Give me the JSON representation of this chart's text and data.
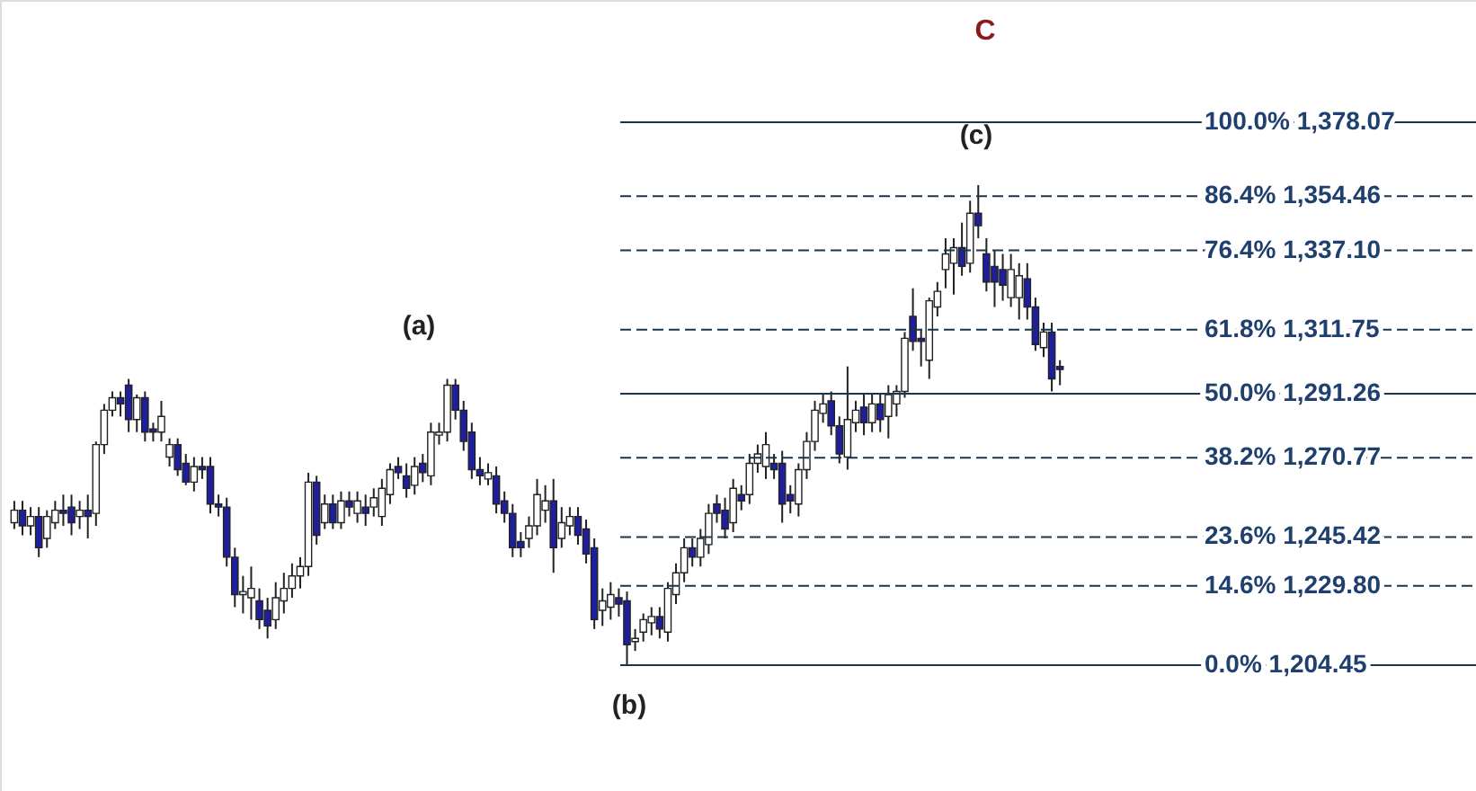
{
  "chart_data": {
    "type": "candlestick",
    "title": "C",
    "categories": [
      null,
      null,
      null,
      null,
      null,
      null,
      null,
      null,
      null,
      null,
      null,
      null,
      null,
      null,
      null,
      null,
      null,
      null,
      null,
      null,
      null,
      null,
      null,
      null,
      null,
      null,
      null,
      null,
      null,
      null,
      null,
      null,
      null,
      null,
      null,
      null,
      null,
      null,
      null,
      null,
      null,
      null,
      null,
      null,
      null,
      null,
      null,
      null,
      null,
      null,
      null,
      null,
      null,
      null,
      null,
      null,
      null,
      null,
      null,
      null,
      null,
      null,
      null,
      null,
      null,
      null,
      null,
      null,
      null,
      null,
      null,
      null,
      null,
      null,
      null,
      null,
      null,
      null,
      null,
      null,
      null,
      null,
      null,
      null,
      null,
      null,
      null,
      null,
      null,
      null,
      null,
      null,
      null,
      null,
      null,
      null,
      null,
      null,
      null,
      null,
      null,
      null,
      null,
      null,
      null,
      null,
      null,
      null,
      null,
      null,
      null,
      null,
      null,
      null,
      null,
      null,
      null,
      null,
      null,
      null,
      null,
      null,
      null,
      null,
      null,
      null,
      null,
      null,
      null
    ],
    "ohlc": [
      [
        1250,
        1257,
        1248,
        1254
      ],
      [
        1254,
        1257,
        1246,
        1249
      ],
      [
        1249,
        1255,
        1246,
        1252
      ],
      [
        1252,
        1255,
        1239,
        1242
      ],
      [
        1245,
        1254,
        1242,
        1252
      ],
      [
        1250,
        1257,
        1248,
        1254
      ],
      [
        1254,
        1259,
        1249,
        1253
      ],
      [
        1255,
        1259,
        1246,
        1250
      ],
      [
        1252,
        1257,
        1248,
        1254
      ],
      [
        1254,
        1259,
        1245,
        1252
      ],
      [
        1253,
        1276,
        1249,
        1275
      ],
      [
        1275,
        1288,
        1272,
        1286
      ],
      [
        1286,
        1292,
        1284,
        1290
      ],
      [
        1290,
        1292,
        1284,
        1288
      ],
      [
        1294,
        1296,
        1279,
        1283
      ],
      [
        1283,
        1291,
        1279,
        1290
      ],
      [
        1290,
        1292,
        1276,
        1279
      ],
      [
        1280,
        1282,
        1276,
        1279
      ],
      [
        1279,
        1289,
        1276,
        1284
      ],
      [
        1271,
        1277,
        1268,
        1275
      ],
      [
        1275,
        1277,
        1265,
        1267
      ],
      [
        1269,
        1272,
        1262,
        1263
      ],
      [
        1263,
        1271,
        1260,
        1268
      ],
      [
        1268,
        1271,
        1264,
        1267
      ],
      [
        1268,
        1271,
        1253,
        1256
      ],
      [
        1256,
        1259,
        1252,
        1255
      ],
      [
        1255,
        1258,
        1236,
        1239
      ],
      [
        1239,
        1242,
        1223,
        1227
      ],
      [
        1227,
        1233,
        1221,
        1228
      ],
      [
        1226,
        1236,
        1219,
        1229
      ],
      [
        1225,
        1229,
        1216,
        1219
      ],
      [
        1222,
        1226,
        1213,
        1217
      ],
      [
        1219,
        1231,
        1216,
        1226
      ],
      [
        1225,
        1234,
        1221,
        1229
      ],
      [
        1229,
        1237,
        1226,
        1233
      ],
      [
        1233,
        1239,
        1229,
        1236
      ],
      [
        1236,
        1266,
        1233,
        1263
      ],
      [
        1263,
        1265,
        1243,
        1246
      ],
      [
        1250,
        1259,
        1248,
        1256
      ],
      [
        1256,
        1259,
        1248,
        1250
      ],
      [
        1250,
        1260,
        1248,
        1257
      ],
      [
        1257,
        1260,
        1252,
        1255
      ],
      [
        1253,
        1260,
        1250,
        1257
      ],
      [
        1255,
        1259,
        1249,
        1253
      ],
      [
        1255,
        1261,
        1252,
        1258
      ],
      [
        1252,
        1264,
        1249,
        1261
      ],
      [
        1259,
        1269,
        1256,
        1267
      ],
      [
        1268,
        1271,
        1264,
        1266
      ],
      [
        1265,
        1269,
        1258,
        1261
      ],
      [
        1262,
        1271,
        1259,
        1268
      ],
      [
        1269,
        1272,
        1263,
        1266
      ],
      [
        1265,
        1282,
        1262,
        1279
      ],
      [
        1278,
        1282,
        1275,
        1279
      ],
      [
        1279,
        1296,
        1276,
        1294
      ],
      [
        1294,
        1296,
        1283,
        1286
      ],
      [
        1286,
        1289,
        1273,
        1276
      ],
      [
        1279,
        1282,
        1264,
        1267
      ],
      [
        1267,
        1271,
        1262,
        1265
      ],
      [
        1264,
        1269,
        1262,
        1266
      ],
      [
        1265,
        1268,
        1253,
        1256
      ],
      [
        1257,
        1260,
        1250,
        1253
      ],
      [
        1253,
        1256,
        1239,
        1242
      ],
      [
        1244,
        1247,
        1239,
        1242
      ],
      [
        1245,
        1252,
        1242,
        1249
      ],
      [
        1249,
        1264,
        1246,
        1259
      ],
      [
        1254,
        1262,
        1250,
        1257
      ],
      [
        1257,
        1264,
        1234,
        1242
      ],
      [
        1245,
        1255,
        1242,
        1250
      ],
      [
        1249,
        1255,
        1246,
        1252
      ],
      [
        1252,
        1255,
        1243,
        1246
      ],
      [
        1248,
        1251,
        1237,
        1240
      ],
      [
        1242,
        1245,
        1216,
        1219
      ],
      [
        1222,
        1229,
        1217,
        1225
      ],
      [
        1223,
        1231,
        1219,
        1227
      ],
      [
        1226,
        1229,
        1220,
        1224
      ],
      [
        1225,
        1228,
        1204.45,
        1211
      ],
      [
        1212,
        1216,
        1209,
        1213
      ],
      [
        1215,
        1221,
        1212,
        1219
      ],
      [
        1218,
        1223,
        1214,
        1220
      ],
      [
        1220,
        1223,
        1213,
        1216
      ],
      [
        1215,
        1231,
        1212,
        1229
      ],
      [
        1227,
        1237,
        1224,
        1234
      ],
      [
        1234,
        1245,
        1231,
        1242
      ],
      [
        1242,
        1245,
        1236,
        1239
      ],
      [
        1239,
        1248,
        1236,
        1245
      ],
      [
        1243,
        1256,
        1240,
        1253
      ],
      [
        1256,
        1259,
        1250,
        1253
      ],
      [
        1254,
        1258,
        1245,
        1248
      ],
      [
        1250,
        1264,
        1247,
        1261
      ],
      [
        1259,
        1262,
        1254,
        1257
      ],
      [
        1259,
        1272,
        1256,
        1269
      ],
      [
        1269,
        1275,
        1266,
        1272
      ],
      [
        1268,
        1279,
        1264,
        1275
      ],
      [
        1269,
        1272,
        1264,
        1267
      ],
      [
        1269,
        1273,
        1250,
        1256
      ],
      [
        1259,
        1262,
        1253,
        1257
      ],
      [
        1256,
        1269,
        1252,
        1267
      ],
      [
        1267,
        1279,
        1264,
        1276
      ],
      [
        1276,
        1289,
        1273,
        1286
      ],
      [
        1285,
        1291,
        1282,
        1288
      ],
      [
        1289,
        1292,
        1278,
        1281
      ],
      [
        1281,
        1284,
        1269,
        1272
      ],
      [
        1271,
        1300,
        1267,
        1283
      ],
      [
        1282,
        1289,
        1279,
        1286
      ],
      [
        1287,
        1291,
        1278,
        1282
      ],
      [
        1282,
        1291,
        1279,
        1288
      ],
      [
        1288,
        1291,
        1279,
        1283
      ],
      [
        1284,
        1294,
        1277,
        1291
      ],
      [
        1288,
        1294,
        1284,
        1292
      ],
      [
        1292,
        1311,
        1290,
        1309
      ],
      [
        1316,
        1325,
        1305,
        1308
      ],
      [
        1309,
        1312,
        1300,
        1308
      ],
      [
        1302,
        1322,
        1296,
        1321
      ],
      [
        1319,
        1327,
        1316,
        1324
      ],
      [
        1331,
        1341,
        1325,
        1336
      ],
      [
        1333,
        1341,
        1323,
        1338
      ],
      [
        1338,
        1346,
        1329,
        1332
      ],
      [
        1333,
        1353,
        1330,
        1349
      ],
      [
        1349,
        1358,
        1341,
        1345
      ],
      [
        1336,
        1341,
        1324,
        1327
      ],
      [
        1332,
        1337,
        1319,
        1327
      ],
      [
        1331,
        1336,
        1321,
        1326
      ],
      [
        1322,
        1336,
        1319,
        1331
      ],
      [
        1322,
        1333,
        1315,
        1329
      ],
      [
        1328,
        1333,
        1315,
        1319
      ],
      [
        1319,
        1322,
        1305,
        1307
      ],
      [
        1306,
        1314,
        1303,
        1311
      ],
      [
        1311,
        1314,
        1292,
        1296
      ],
      [
        1300,
        1302,
        1294,
        1299
      ]
    ],
    "colors": [
      "#ffffff",
      "#1f1f9e",
      "#ffffff",
      "#1f1f9e",
      "#ffffff",
      "#ffffff",
      "#1f1f9e",
      "#1f1f9e",
      "#ffffff",
      "#1f1f9e",
      "#ffffff",
      "#ffffff",
      "#ffffff",
      "#1f1f9e",
      "#1f1f9e",
      "#ffffff",
      "#1f1f9e",
      "#1f1f9e",
      "#ffffff",
      "#ffffff",
      "#1f1f9e",
      "#1f1f9e",
      "#ffffff",
      "#1f1f9e",
      "#1f1f9e",
      "#1f1f9e",
      "#1f1f9e",
      "#1f1f9e",
      "#ffffff",
      "#ffffff",
      "#1f1f9e",
      "#1f1f9e",
      "#ffffff",
      "#ffffff",
      "#ffffff",
      "#ffffff",
      "#ffffff",
      "#1f1f9e",
      "#ffffff",
      "#1f1f9e",
      "#ffffff",
      "#1f1f9e",
      "#ffffff",
      "#1f1f9e",
      "#ffffff",
      "#ffffff",
      "#ffffff",
      "#1f1f9e",
      "#1f1f9e",
      "#ffffff",
      "#1f1f9e",
      "#ffffff",
      "#ffffff",
      "#ffffff",
      "#1f1f9e",
      "#1f1f9e",
      "#1f1f9e",
      "#1f1f9e",
      "#ffffff",
      "#1f1f9e",
      "#1f1f9e",
      "#1f1f9e",
      "#1f1f9e",
      "#ffffff",
      "#ffffff",
      "#ffffff",
      "#1f1f9e",
      "#ffffff",
      "#ffffff",
      "#1f1f9e",
      "#1f1f9e",
      "#1f1f9e",
      "#ffffff",
      "#ffffff",
      "#1f1f9e",
      "#1f1f9e",
      "#ffffff",
      "#ffffff",
      "#ffffff",
      "#1f1f9e",
      "#ffffff",
      "#ffffff",
      "#ffffff",
      "#1f1f9e",
      "#ffffff",
      "#ffffff",
      "#1f1f9e",
      "#1f1f9e",
      "#ffffff",
      "#1f1f9e",
      "#ffffff",
      "#ffffff",
      "#ffffff",
      "#1f1f9e",
      "#1f1f9e",
      "#1f1f9e",
      "#ffffff",
      "#ffffff",
      "#ffffff",
      "#ffffff",
      "#1f1f9e",
      "#1f1f9e",
      "#ffffff",
      "#ffffff",
      "#1f1f9e",
      "#ffffff",
      "#1f1f9e",
      "#ffffff",
      "#ffffff",
      "#ffffff",
      "#1f1f9e",
      "#1f1f9e",
      "#ffffff",
      "#ffffff",
      "#ffffff",
      "#ffffff",
      "#1f1f9e",
      "#ffffff",
      "#1f1f9e",
      "#1f1f9e",
      "#1f1f9e",
      "#1f1f9e",
      "#ffffff",
      "#ffffff",
      "#1f1f9e",
      "#1f1f9e",
      "#ffffff",
      "#1f1f9e",
      "#1f1f9e"
    ],
    "ylim": [
      1164.2,
      1417.2
    ],
    "ref_lines": [
      {
        "axis": "y",
        "value": 1378.07,
        "label": "100.0%  1,378.07",
        "line_style": "solid",
        "color": "#1a3550"
      },
      {
        "axis": "y",
        "value": 1354.46,
        "label": "86.4%  1,354.46",
        "line_style": "dashed",
        "color": "#1a3550"
      },
      {
        "axis": "y",
        "value": 1337.1,
        "label": "76.4%  1,337.10",
        "line_style": "dashed",
        "color": "#1a3550"
      },
      {
        "axis": "y",
        "value": 1311.75,
        "label": "61.8%  1,311.75",
        "line_style": "dashed",
        "color": "#1a3550"
      },
      {
        "axis": "y",
        "value": 1291.26,
        "label": "50.0%  1,291.26",
        "line_style": "solid",
        "color": "#1a3550"
      },
      {
        "axis": "y",
        "value": 1270.77,
        "label": "38.2%  1,270.77",
        "line_style": "dashed",
        "color": "#1a3550"
      },
      {
        "axis": "y",
        "value": 1245.42,
        "label": "23.6%  1,245.42",
        "line_style": "dashed",
        "color": "#1a3550"
      },
      {
        "axis": "y",
        "value": 1229.8,
        "label": "14.6%  1,229.80",
        "line_style": "dashed",
        "color": "#1a3550"
      },
      {
        "axis": "y",
        "value": 1204.45,
        "label": "0.0%  1,204.45",
        "line_style": "solid",
        "color": "#1a3550"
      }
    ],
    "annotations": [
      "(a)",
      "(b)",
      "(c)"
    ]
  }
}
